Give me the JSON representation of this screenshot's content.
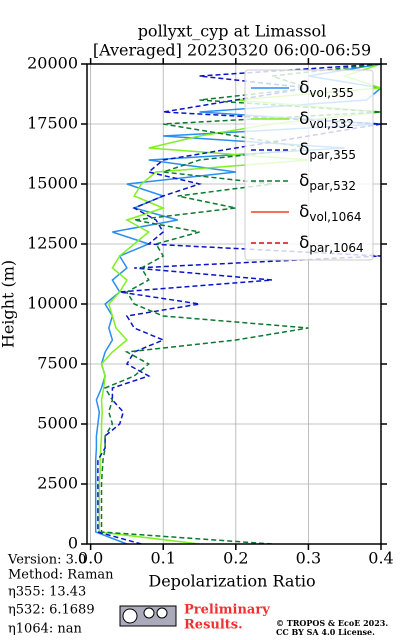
{
  "chart_data": {
    "type": "line",
    "title": "pollyxt_cyp at Limassol",
    "subtitle": "[Averaged] 20230320 06:00-06:59",
    "x_label": "Depolarization Ratio",
    "y_label": "Height (m)",
    "xlim": [
      -0.005,
      0.4
    ],
    "ylim": [
      0,
      20000
    ],
    "xticks": [
      {
        "value": 0,
        "label": "0.0"
      },
      0.1,
      0.2,
      0.3,
      0.4
    ],
    "yticks": [
      0,
      2500,
      5000,
      7500,
      10000,
      12500,
      15000,
      17500,
      20000
    ],
    "grid": true,
    "legend": "upper right",
    "y": [
      0,
      500,
      1000,
      1500,
      2000,
      2500,
      3000,
      3500,
      4000,
      4500,
      5000,
      5500,
      6000,
      6500,
      7000,
      7500,
      8000,
      8500,
      9000,
      9500,
      10000,
      10500,
      11000,
      11500,
      12000,
      12500,
      13000,
      13500,
      14000,
      14500,
      15000,
      15500,
      16000,
      16500,
      17000,
      17500,
      18000,
      18500,
      19000,
      19500,
      20000
    ],
    "series": [
      {
        "name": "δvol,355",
        "color": "#2b8ff0",
        "dash": false,
        "values": [
          0.05,
          0.007,
          0.007,
          0.007,
          0.007,
          0.007,
          0.007,
          0.007,
          0.008,
          0.008,
          0.01,
          0.012,
          0.008,
          0.015,
          0.02,
          0.015,
          0.02,
          0.03,
          0.025,
          0.03,
          0.02,
          0.04,
          0.03,
          0.05,
          0.04,
          0.08,
          0.03,
          0.12,
          0.06,
          0.1,
          0.05,
          0.2,
          0.08,
          0.35,
          0.1,
          0.4,
          0.15,
          0.38,
          0.4,
          0.3,
          0.4
        ]
      },
      {
        "name": "δvol,532",
        "color": "#80f020",
        "dash": false,
        "values": [
          0.15,
          0.012,
          0.012,
          0.012,
          0.012,
          0.012,
          0.013,
          0.013,
          0.014,
          0.015,
          0.015,
          0.016,
          0.015,
          0.018,
          0.02,
          0.015,
          0.03,
          0.05,
          0.035,
          0.03,
          0.025,
          0.04,
          0.05,
          0.03,
          0.04,
          0.06,
          0.08,
          0.05,
          0.1,
          0.06,
          0.07,
          0.09,
          0.3,
          0.08,
          0.15,
          0.25,
          0.4,
          0.2,
          0.4,
          0.35,
          0.4
        ]
      },
      {
        "name": "δpar,355",
        "color": "#0a14c8",
        "dash": true,
        "values": [
          0.07,
          0.01,
          0.01,
          0.01,
          0.01,
          0.01,
          0.01,
          0.01,
          0.02,
          0.02,
          0.04,
          0.045,
          0.03,
          0.03,
          0.08,
          0.05,
          0.06,
          0.1,
          0.06,
          0.05,
          0.15,
          0.04,
          0.25,
          0.06,
          0.4,
          0.08,
          0.1,
          0.09,
          0.06,
          0.1,
          0.15,
          0.08,
          0.1,
          0.2,
          0.3,
          0.4,
          0.1,
          0.2,
          0.3,
          0.15,
          0.4
        ]
      },
      {
        "name": "δpar,532",
        "color": "#0a7a30",
        "dash": true,
        "values": [
          0.25,
          0.015,
          0.015,
          0.015,
          0.015,
          0.015,
          0.016,
          0.017,
          0.02,
          0.02,
          0.03,
          0.025,
          0.03,
          0.02,
          0.06,
          0.08,
          0.05,
          0.2,
          0.3,
          0.1,
          0.06,
          0.05,
          0.08,
          0.07,
          0.1,
          0.09,
          0.15,
          0.06,
          0.2,
          0.12,
          0.25,
          0.1,
          0.15,
          0.3,
          0.2,
          0.1,
          0.4,
          0.15,
          0.3,
          0.25,
          0.4
        ]
      },
      {
        "name": "δvol,1064",
        "color": "#f04020",
        "dash": false,
        "values": [
          null,
          null,
          null,
          null,
          null,
          null,
          null,
          null,
          null,
          null,
          null,
          null,
          null,
          null,
          null,
          null,
          null,
          null,
          null,
          null,
          null,
          null,
          null,
          null,
          null,
          null,
          null,
          null,
          null,
          null,
          null,
          null,
          null,
          null,
          null,
          null,
          null,
          null,
          null,
          null,
          null
        ]
      },
      {
        "name": "δpar,1064",
        "color": "#d01010",
        "dash": true,
        "values": [
          null,
          null,
          null,
          null,
          null,
          null,
          null,
          null,
          null,
          null,
          null,
          null,
          null,
          null,
          null,
          null,
          null,
          null,
          null,
          null,
          null,
          null,
          null,
          null,
          null,
          null,
          null,
          null,
          null,
          null,
          null,
          null,
          null,
          null,
          null,
          null,
          null,
          null,
          null,
          null,
          null
        ]
      }
    ],
    "info": [
      "Version: 3.0",
      "Method: Raman",
      "η355:  13.43",
      "η532: 6.1689",
      "η1064:    nan"
    ],
    "notice": [
      "Preliminary",
      "Results."
    ],
    "copyright": [
      "© TROPOS & EcoE 2023.",
      "CC BY SA 4.0 License."
    ]
  }
}
